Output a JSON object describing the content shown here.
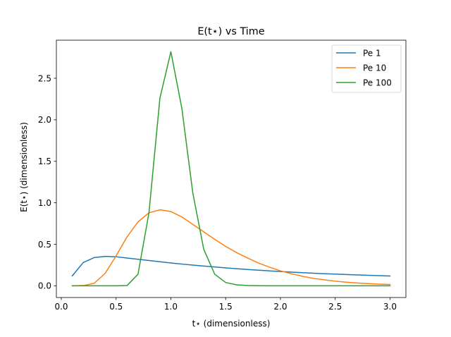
{
  "chart_data": {
    "type": "line",
    "title": "E(t⋆) vs Time",
    "xlabel": "t⋆ (dimensionless)",
    "ylabel": "E(t⋆) (dimensionless)",
    "xlim": [
      -0.045,
      3.145
    ],
    "ylim": [
      -0.1409,
      2.9588
    ],
    "xticks": [
      "0.0",
      "0.5",
      "1.0",
      "1.5",
      "2.0",
      "2.5",
      "3.0"
    ],
    "yticks": [
      "0.0",
      "0.5",
      "1.0",
      "1.5",
      "2.0",
      "2.5"
    ],
    "grid": false,
    "legend_position": "top-right",
    "x": [
      0.1,
      0.2,
      0.3,
      0.4,
      0.5,
      0.6,
      0.7,
      0.8,
      0.9,
      1.0,
      1.1,
      1.2,
      1.3,
      1.4,
      1.5,
      1.6,
      1.7,
      1.8,
      1.9,
      2.0,
      2.1,
      2.2,
      2.3,
      2.4,
      2.5,
      2.6,
      2.7,
      2.8,
      2.9,
      3.0
    ],
    "series": [
      {
        "name": "Pe 1",
        "color": "#1f77b4",
        "values": [
          0.12,
          0.28,
          0.34,
          0.355,
          0.35,
          0.335,
          0.32,
          0.305,
          0.29,
          0.275,
          0.262,
          0.25,
          0.238,
          0.227,
          0.216,
          0.206,
          0.197,
          0.188,
          0.18,
          0.172,
          0.165,
          0.158,
          0.152,
          0.146,
          0.141,
          0.136,
          0.131,
          0.127,
          0.122,
          0.118
        ]
      },
      {
        "name": "Pe 10",
        "color": "#ff7f0e",
        "values": [
          0.0,
          0.003,
          0.03,
          0.15,
          0.36,
          0.59,
          0.77,
          0.88,
          0.915,
          0.895,
          0.83,
          0.74,
          0.65,
          0.56,
          0.475,
          0.4,
          0.335,
          0.275,
          0.225,
          0.18,
          0.145,
          0.115,
          0.09,
          0.072,
          0.056,
          0.044,
          0.034,
          0.027,
          0.021,
          0.016
        ]
      },
      {
        "name": "Pe 100",
        "color": "#2ca02c",
        "values": [
          0.0,
          0.0,
          0.0,
          0.0,
          0.0,
          0.003,
          0.14,
          0.88,
          2.26,
          2.82,
          2.14,
          1.12,
          0.44,
          0.14,
          0.04,
          0.012,
          0.003,
          0.001,
          0.0,
          0.0,
          0.0,
          0.0,
          0.0,
          0.0,
          0.0,
          0.0,
          0.0,
          0.0,
          0.0,
          0.0
        ]
      }
    ]
  }
}
